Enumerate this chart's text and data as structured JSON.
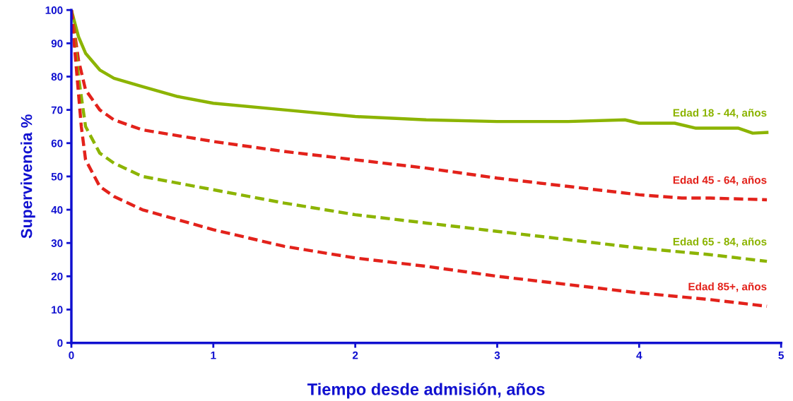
{
  "chart_data": {
    "type": "line",
    "xlabel": "Tiempo desde admisión, años",
    "ylabel": "Supervivencia %",
    "xlim": [
      0,
      5
    ],
    "xticks": [
      0,
      1,
      2,
      3,
      4,
      5
    ],
    "ylim": [
      0,
      100
    ],
    "yticks": [
      0,
      10,
      20,
      30,
      40,
      50,
      60,
      70,
      80,
      90,
      100
    ],
    "grid": false,
    "legend": false,
    "marker": "none",
    "series": [
      {
        "name": "Edad 18 - 44, años",
        "color": "#8cb400",
        "line_style": "solid",
        "x": [
          0,
          0.05,
          0.1,
          0.2,
          0.3,
          0.5,
          0.75,
          1,
          1.5,
          2,
          2.5,
          3,
          3.5,
          3.9,
          4,
          4.25,
          4.4,
          4.6,
          4.7,
          4.8,
          4.9
        ],
        "values": [
          100,
          92,
          87,
          82,
          79.5,
          77,
          74,
          72,
          70,
          68,
          67,
          66.5,
          66.5,
          67,
          66,
          66,
          64.5,
          64.5,
          64.5,
          63,
          63.2
        ]
      },
      {
        "name": "Edad 45 - 64, años",
        "color": "#e3221b",
        "line_style": "dashed",
        "x": [
          0,
          0.05,
          0.1,
          0.2,
          0.3,
          0.5,
          1,
          1.5,
          2,
          2.5,
          3,
          3.5,
          4,
          4.3,
          4.5,
          4.9
        ],
        "values": [
          100,
          85,
          76,
          70,
          67,
          64,
          60.5,
          57.5,
          55,
          52.5,
          49.5,
          47,
          44.5,
          43.5,
          43.5,
          43
        ]
      },
      {
        "name": "Edad 65 - 84, años",
        "color": "#8cb400",
        "line_style": "dashed",
        "x": [
          0,
          0.05,
          0.1,
          0.2,
          0.3,
          0.5,
          1,
          1.5,
          2,
          2.5,
          3,
          3.5,
          4,
          4.5,
          4.9
        ],
        "values": [
          100,
          80,
          65,
          57,
          54,
          50,
          46,
          42,
          38.5,
          36,
          33.5,
          31,
          28.5,
          26.5,
          24.5
        ]
      },
      {
        "name": "Edad 85+, años",
        "color": "#e3221b",
        "line_style": "dashed",
        "x": [
          0,
          0.03,
          0.07,
          0.1,
          0.2,
          0.3,
          0.5,
          1,
          1.5,
          2,
          2.5,
          3,
          3.5,
          4,
          4.5,
          4.9
        ],
        "values": [
          100,
          85,
          65,
          55,
          47,
          44,
          40,
          34,
          29,
          25.5,
          23,
          20,
          17.5,
          15,
          13,
          11
        ]
      }
    ]
  }
}
